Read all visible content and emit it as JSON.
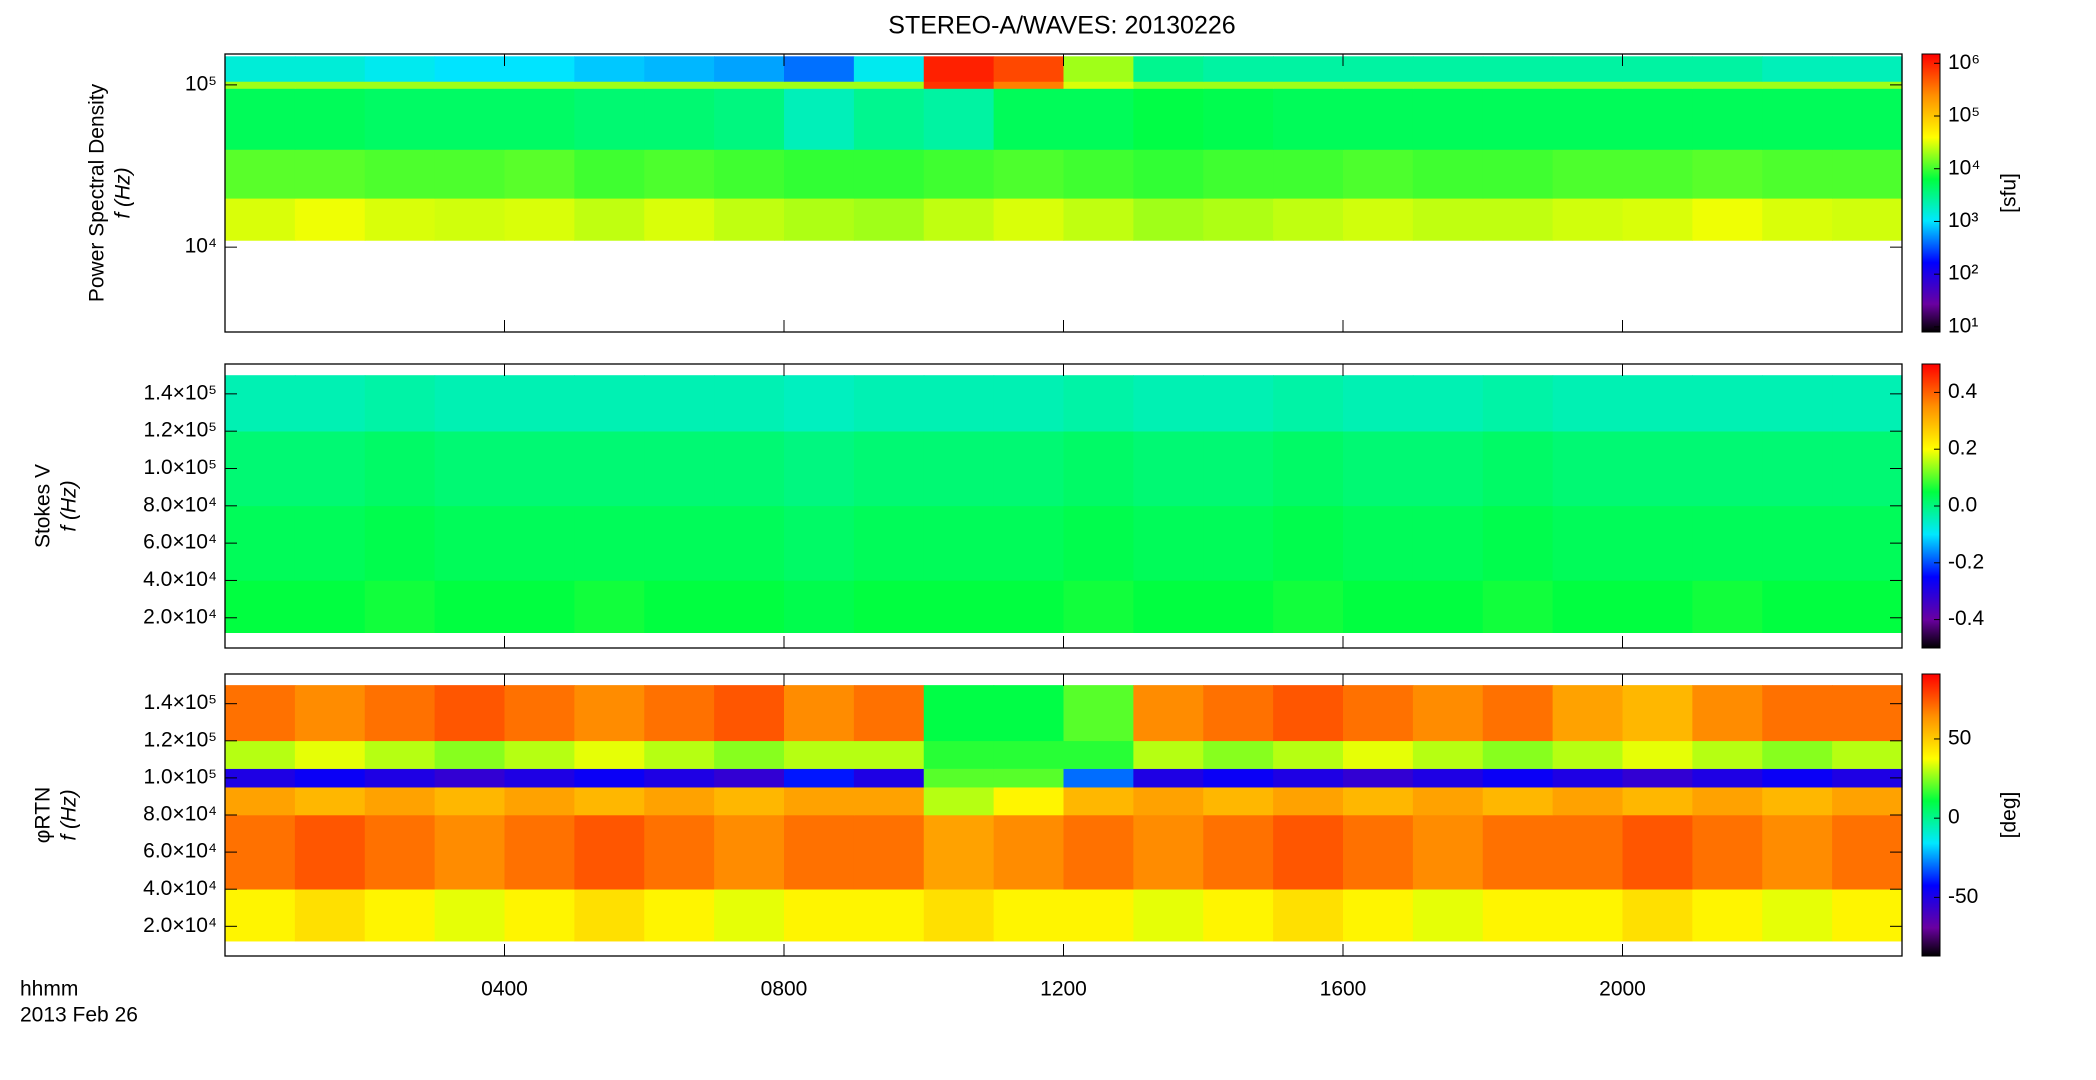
{
  "title": "STEREO-A/WAVES: 20130226",
  "x_label": "hhmm",
  "date_label": "2013 Feb 26",
  "chart_data": [
    {
      "type": "heatmap",
      "ylabel": [
        "Power Spectral Density",
        "f (Hz)"
      ],
      "ylog": true,
      "ylim": [
        3000,
        155000
      ],
      "yticks": [
        {
          "value": 10000,
          "label": "10⁴"
        },
        {
          "value": 100000,
          "label": "10⁵"
        }
      ],
      "xlim": [
        0,
        24
      ],
      "xbins": [
        0,
        1,
        2,
        3,
        4,
        5,
        6,
        7,
        8,
        9,
        10,
        11,
        12,
        13,
        14,
        15,
        16,
        17,
        18,
        19,
        20,
        21,
        22,
        23,
        24
      ],
      "ybins": [
        11000,
        20000,
        40000,
        95000,
        105000,
        150000
      ],
      "z": [
        [
          30000,
          35000,
          30000,
          28000,
          30000,
          25000,
          30000,
          25000,
          22000,
          20000,
          25000,
          30000,
          25000,
          20000,
          22000,
          25000,
          28000,
          25000,
          25000,
          28000,
          30000,
          35000,
          30000,
          28000
        ],
        [
          12000,
          12000,
          11000,
          11000,
          12000,
          10000,
          11000,
          10000,
          9000,
          9000,
          10000,
          11000,
          10000,
          9000,
          10000,
          10000,
          11000,
          10000,
          10000,
          11000,
          11000,
          12000,
          11000,
          11000
        ],
        [
          5000,
          5000,
          4500,
          4500,
          4500,
          4000,
          4000,
          3500,
          2000,
          3000,
          2500,
          5000,
          5000,
          6000,
          5500,
          5000,
          5000,
          5000,
          5000,
          5000,
          5000,
          5000,
          5000,
          5000
        ],
        [
          20000,
          20000,
          20000,
          20000,
          20000,
          20000,
          20000,
          20000,
          20000,
          20000,
          800000,
          300000,
          30000,
          20000,
          20000,
          20000,
          20000,
          20000,
          20000,
          20000,
          20000,
          20000,
          20000,
          20000
        ],
        [
          1500,
          1500,
          1200,
          1000,
          1000,
          800,
          700,
          600,
          400,
          1200,
          1000000,
          600000,
          20000,
          3000,
          2500,
          2500,
          2500,
          2500,
          2500,
          2500,
          2500,
          2500,
          2000,
          2000
        ]
      ],
      "clog": true,
      "clim": [
        8,
        1500000
      ],
      "cticks": [
        {
          "value": 10,
          "label": "10¹"
        },
        {
          "value": 100,
          "label": "10²"
        },
        {
          "value": 1000,
          "label": "10³"
        },
        {
          "value": 10000,
          "label": "10⁴"
        },
        {
          "value": 100000,
          "label": "10⁵"
        },
        {
          "value": 1000000,
          "label": "10⁶"
        }
      ],
      "clabel": "[sfu]"
    },
    {
      "type": "heatmap",
      "ylabel": [
        "Stokes V",
        "f (Hz)"
      ],
      "ylog": false,
      "ylim": [
        3800,
        156000
      ],
      "yticks": [
        {
          "value": 20000,
          "label": "2.0×10⁴"
        },
        {
          "value": 40000,
          "label": "4.0×10⁴"
        },
        {
          "value": 60000,
          "label": "6.0×10⁴"
        },
        {
          "value": 80000,
          "label": "8.0×10⁴"
        },
        {
          "value": 100000,
          "label": "1.0×10⁵"
        },
        {
          "value": 120000,
          "label": "1.2×10⁵"
        },
        {
          "value": 140000,
          "label": "1.4×10⁵"
        }
      ],
      "xlim": [
        0,
        24
      ],
      "xbins": [
        0,
        1,
        2,
        3,
        4,
        5,
        6,
        7,
        8,
        9,
        10,
        11,
        12,
        13,
        14,
        15,
        16,
        17,
        18,
        19,
        20,
        21,
        22,
        23,
        24
      ],
      "ybins": [
        12000,
        40000,
        80000,
        120000,
        150000
      ],
      "z": [
        [
          0.05,
          0.05,
          0.06,
          0.05,
          0.05,
          0.06,
          0.05,
          0.05,
          0.04,
          0.05,
          0.05,
          0.05,
          0.06,
          0.05,
          0.05,
          0.06,
          0.05,
          0.05,
          0.06,
          0.05,
          0.05,
          0.06,
          0.05,
          0.05
        ],
        [
          0.03,
          0.03,
          0.04,
          0.03,
          0.03,
          0.03,
          0.03,
          0.03,
          0.02,
          0.03,
          0.03,
          0.03,
          0.04,
          0.03,
          0.03,
          0.04,
          0.03,
          0.03,
          0.04,
          0.03,
          0.03,
          0.03,
          0.03,
          0.03
        ],
        [
          0.01,
          0.01,
          0.02,
          0.01,
          0.01,
          0.01,
          0.01,
          0.01,
          0.0,
          0.01,
          0.01,
          0.01,
          0.02,
          0.01,
          0.01,
          0.02,
          0.01,
          0.01,
          0.02,
          0.01,
          0.01,
          0.01,
          0.01,
          0.01
        ],
        [
          -0.04,
          -0.04,
          -0.03,
          -0.04,
          -0.04,
          -0.04,
          -0.04,
          -0.04,
          -0.05,
          -0.04,
          -0.04,
          -0.04,
          -0.03,
          -0.04,
          -0.04,
          -0.03,
          -0.04,
          -0.04,
          -0.03,
          -0.04,
          -0.04,
          -0.04,
          -0.04,
          -0.04
        ]
      ],
      "clog": false,
      "clim": [
        -0.5,
        0.5
      ],
      "cticks": [
        {
          "value": -0.4,
          "label": "-0.4"
        },
        {
          "value": -0.2,
          "label": "-0.2"
        },
        {
          "value": 0.0,
          "label": "0.0"
        },
        {
          "value": 0.2,
          "label": "0.2"
        },
        {
          "value": 0.4,
          "label": "0.4"
        }
      ]
    },
    {
      "type": "heatmap",
      "ylabel": [
        "φRTN",
        "f (Hz)"
      ],
      "ylog": false,
      "ylim": [
        4000,
        156000
      ],
      "yticks": [
        {
          "value": 20000,
          "label": "2.0×10⁴"
        },
        {
          "value": 40000,
          "label": "4.0×10⁴"
        },
        {
          "value": 60000,
          "label": "6.0×10⁴"
        },
        {
          "value": 80000,
          "label": "8.0×10⁴"
        },
        {
          "value": 100000,
          "label": "1.0×10⁵"
        },
        {
          "value": 120000,
          "label": "1.2×10⁵"
        },
        {
          "value": 140000,
          "label": "1.4×10⁵"
        }
      ],
      "xlim": [
        0,
        24
      ],
      "xbins": [
        0,
        1,
        2,
        3,
        4,
        5,
        6,
        7,
        8,
        9,
        10,
        11,
        12,
        13,
        14,
        15,
        16,
        17,
        18,
        19,
        20,
        21,
        22,
        23,
        24
      ],
      "xticks": [
        {
          "value": 4,
          "label": "0400"
        },
        {
          "value": 8,
          "label": "0800"
        },
        {
          "value": 12,
          "label": "1200"
        },
        {
          "value": 16,
          "label": "1600"
        },
        {
          "value": 20,
          "label": "2000"
        }
      ],
      "ybins": [
        12000,
        40000,
        80000,
        95000,
        105000,
        120000,
        150000
      ],
      "z": [
        [
          40,
          45,
          40,
          35,
          40,
          45,
          40,
          35,
          40,
          40,
          45,
          40,
          40,
          35,
          40,
          45,
          40,
          35,
          40,
          40,
          45,
          40,
          35,
          40
        ],
        [
          70,
          75,
          70,
          65,
          70,
          75,
          70,
          65,
          70,
          70,
          60,
          65,
          70,
          65,
          70,
          75,
          70,
          65,
          70,
          70,
          75,
          70,
          65,
          70
        ],
        [
          60,
          55,
          60,
          55,
          60,
          55,
          60,
          55,
          60,
          60,
          30,
          40,
          55,
          60,
          55,
          60,
          55,
          60,
          55,
          60,
          55,
          60,
          55,
          60
        ],
        [
          -50,
          -45,
          -50,
          -55,
          -50,
          -45,
          -50,
          -55,
          -40,
          -50,
          20,
          20,
          -30,
          -50,
          -45,
          -50,
          -55,
          -50,
          -45,
          -50,
          -55,
          -50,
          -45,
          -50
        ],
        [
          30,
          35,
          30,
          25,
          30,
          35,
          30,
          25,
          30,
          30,
          15,
          15,
          15,
          30,
          25,
          30,
          35,
          30,
          25,
          30,
          35,
          30,
          25,
          30
        ],
        [
          70,
          65,
          70,
          75,
          70,
          65,
          70,
          75,
          65,
          70,
          10,
          10,
          20,
          65,
          70,
          75,
          70,
          65,
          70,
          60,
          55,
          65,
          70,
          70
        ]
      ],
      "clog": false,
      "clim": [
        -87,
        91
      ],
      "cticks": [
        -50,
        0,
        50
      ],
      "clabel": "[deg]"
    }
  ]
}
